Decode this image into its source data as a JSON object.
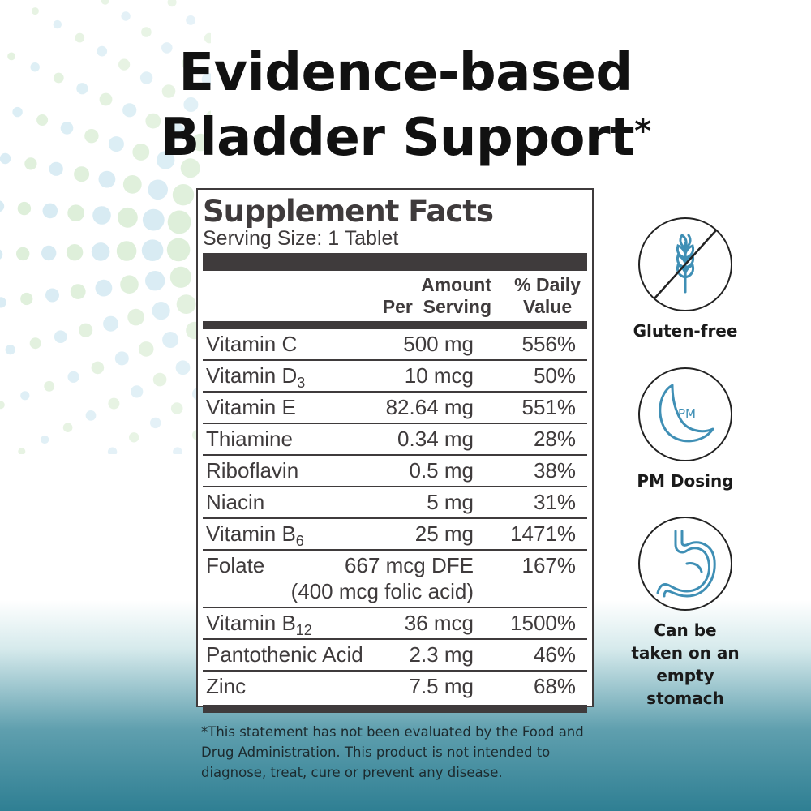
{
  "headline": {
    "line1": "Evidence-based",
    "line2": "Bladder Support",
    "mark": "*"
  },
  "supplement_facts": {
    "title": "Supplement Facts",
    "serving_size": "Serving Size: 1 Tablet",
    "header_amount_line1": "Amount",
    "header_amount_line2": "Per  Serving",
    "header_dv_line1": "% Daily",
    "header_dv_line2": "Value",
    "rows": [
      {
        "name": "Vitamin C",
        "sub": "",
        "amount": "500 mg",
        "amount2": "",
        "dv": "556%"
      },
      {
        "name": "Vitamin D",
        "sub": "3",
        "amount": "10 mcg",
        "amount2": "",
        "dv": "50%"
      },
      {
        "name": "Vitamin E",
        "sub": "",
        "amount": "82.64 mg",
        "amount2": "",
        "dv": "551%"
      },
      {
        "name": "Thiamine",
        "sub": "",
        "amount": "0.34 mg",
        "amount2": "",
        "dv": "28%"
      },
      {
        "name": "Riboflavin",
        "sub": "",
        "amount": "0.5 mg",
        "amount2": "",
        "dv": "38%"
      },
      {
        "name": "Niacin",
        "sub": "",
        "amount": "5 mg",
        "amount2": "",
        "dv": "31%"
      },
      {
        "name": "Vitamin B",
        "sub": "6",
        "amount": "25 mg",
        "amount2": "",
        "dv": "1471%"
      },
      {
        "name": "Folate",
        "sub": "",
        "amount": "667 mcg DFE",
        "amount2": "(400 mcg folic acid)",
        "dv": "167%"
      },
      {
        "name": "Vitamin B",
        "sub": "12",
        "amount": "36 mcg",
        "amount2": "",
        "dv": "1500%"
      },
      {
        "name": "Pantothenic Acid",
        "sub": "",
        "amount": "2.3 mg",
        "amount2": "",
        "dv": "46%"
      },
      {
        "name": "Zinc",
        "sub": "",
        "amount": "7.5 mg",
        "amount2": "",
        "dv": "68%"
      }
    ]
  },
  "badges": {
    "gluten_free": {
      "icon": "wheat-crossed-icon",
      "label": "Gluten-free"
    },
    "pm_dosing": {
      "icon": "moon-pm-icon",
      "icon_text": "PM",
      "label": "PM Dosing"
    },
    "empty_stomach": {
      "icon": "stomach-icon",
      "label_line1": "Can be",
      "label_line2": "taken on an",
      "label_line3": "empty stomach"
    }
  },
  "disclaimer": {
    "line1": "*This statement has not been evaluated by the Food and",
    "line2": "Drug Administration. This product is not intended to",
    "line3": "diagnose, treat, cure or prevent any disease."
  },
  "colors": {
    "label_dark": "#3f3b3c",
    "icon_blue": "#3f8fb5",
    "teal_bottom": "#2f7f93",
    "dot_green": "#cfe8c8",
    "dot_blue": "#c5e2ee"
  }
}
